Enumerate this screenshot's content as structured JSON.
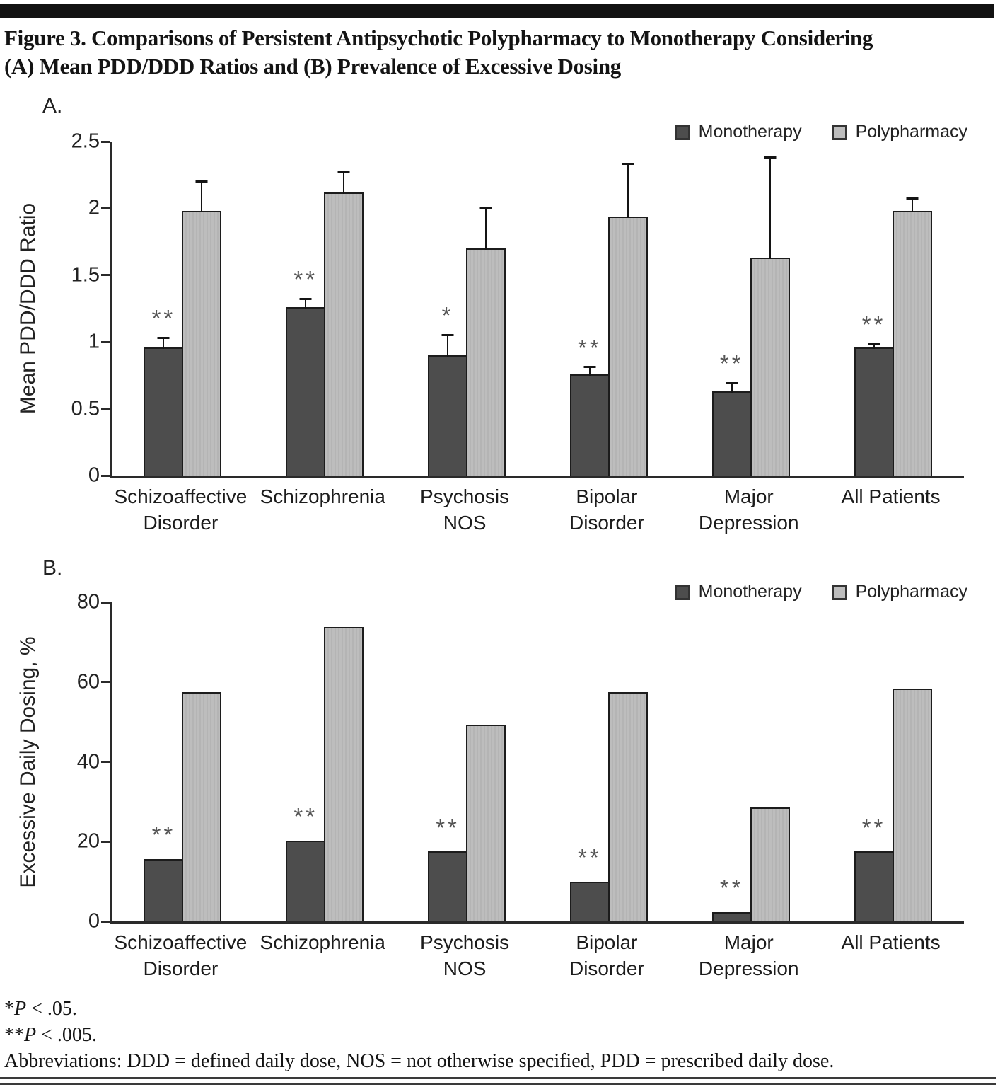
{
  "page": {
    "title_line1": "Figure 3. Comparisons of Persistent Antipsychotic Polypharmacy to Monotherapy Considering",
    "title_line2": "(A) Mean PDD/DDD Ratios and (B) Prevalence of Excessive Dosing"
  },
  "colors": {
    "bar_monotherapy": "#4d4d4d",
    "bar_polypharmacy": "#bdbdbd",
    "bar_border": "#1c1c1c",
    "axis": "#2a2a2a",
    "significance": "#555555"
  },
  "chart_data": [
    {
      "type": "bar",
      "panel_label": "A.",
      "title": "",
      "xlabel": "",
      "ylabel": "Mean PDD/DDD Ratio",
      "ylim": [
        0,
        2.5
      ],
      "yticks": [
        0,
        0.5,
        1,
        1.5,
        2,
        2.5
      ],
      "ytick_labels": [
        "0",
        "0.5",
        "1",
        "1.5",
        "2",
        "2.5"
      ],
      "grid": false,
      "legend_position": "top-right",
      "categories": [
        [
          "Schizoaffective",
          "Disorder"
        ],
        [
          "Schizophrenia"
        ],
        [
          "Psychosis",
          "NOS"
        ],
        [
          "Bipolar",
          "Disorder"
        ],
        [
          "Major",
          "Depression"
        ],
        [
          "All Patients"
        ]
      ],
      "series": [
        {
          "name": "Monotherapy",
          "values": [
            0.96,
            1.26,
            0.9,
            0.76,
            0.63,
            0.96
          ],
          "errors": [
            0.09,
            0.08,
            0.17,
            0.07,
            0.08,
            0.04
          ],
          "sig": [
            "**",
            "**",
            "*",
            "**",
            "**",
            "**"
          ]
        },
        {
          "name": "Polypharmacy",
          "values": [
            1.98,
            2.12,
            1.7,
            1.94,
            1.63,
            1.98
          ],
          "errors": [
            0.24,
            0.17,
            0.32,
            0.41,
            0.77,
            0.11
          ],
          "sig": [
            "",
            "",
            "",
            "",
            "",
            ""
          ]
        }
      ]
    },
    {
      "type": "bar",
      "panel_label": "B.",
      "title": "",
      "xlabel": "",
      "ylabel": "Excessive Daily Dosing, %",
      "ylim": [
        0,
        80
      ],
      "yticks": [
        0,
        20,
        40,
        60,
        80
      ],
      "ytick_labels": [
        "0",
        "20",
        "40",
        "60",
        "80"
      ],
      "grid": false,
      "legend_position": "top-right",
      "categories": [
        [
          "Schizoaffective",
          "Disorder"
        ],
        [
          "Schizophrenia"
        ],
        [
          "Psychosis",
          "NOS"
        ],
        [
          "Bipolar",
          "Disorder"
        ],
        [
          "Major",
          "Depression"
        ],
        [
          "All Patients"
        ]
      ],
      "series": [
        {
          "name": "Monotherapy",
          "values": [
            15.7,
            20.2,
            17.5,
            10.0,
            2.3,
            17.5
          ],
          "errors": null,
          "sig": [
            "**",
            "**",
            "**",
            "**",
            "**",
            "**"
          ]
        },
        {
          "name": "Polypharmacy",
          "values": [
            57.5,
            73.8,
            49.4,
            57.5,
            28.5,
            58.3
          ],
          "errors": null,
          "sig": [
            "",
            "",
            "",
            "",
            "",
            ""
          ]
        }
      ]
    }
  ],
  "footnotes": {
    "line1": {
      "prefix": "*",
      "italic": "P",
      "rest": " < .05."
    },
    "line2": {
      "prefix": "**",
      "italic": "P",
      "rest": " < .005."
    },
    "abbreviations": "Abbreviations: DDD = defined daily dose, NOS = not otherwise specified, PDD = prescribed daily dose."
  }
}
